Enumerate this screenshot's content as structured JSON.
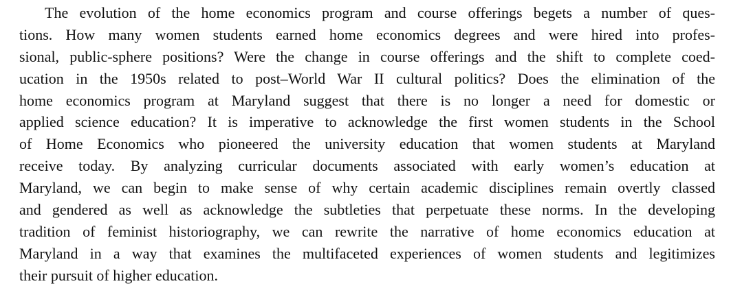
{
  "paragraph": {
    "lines": [
      "The evolution of the home economics program and course offerings begets a number of ques-",
      "tions. How many women students earned home economics degrees and were hired into profes-",
      "sional, public-sphere positions? Were the change in course offerings and the shift to complete coed-",
      "ucation in the 1950s related to post–World War II cultural politics? Does the elimination of the",
      "home economics program at Maryland suggest that there is no longer a need for domestic or",
      "applied science education? It is imperative to acknowledge the first women students in the School",
      "of Home Economics who pioneered the university education that women students at Maryland",
      "receive today. By analyzing curricular documents associated with early women’s education at",
      "Maryland, we can begin to make sense of why certain academic disciplines remain overtly classed",
      "and gendered as well as acknowledge the subtleties that perpetuate these norms. In the developing",
      "tradition of feminist historiography, we can rewrite the narrative of home economics education at",
      "Maryland in a way that examines the multifaceted experiences of women students and legitimizes",
      "their pursuit of higher education."
    ]
  }
}
